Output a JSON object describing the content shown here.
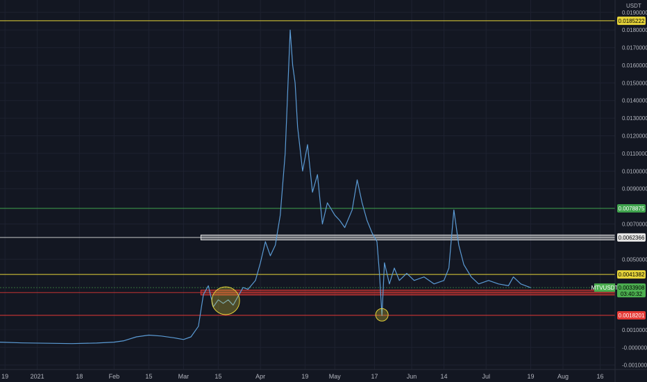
{
  "chart_data": {
    "type": "line",
    "symbol": "MTVUSDT",
    "currency_label": "USDT",
    "colors": {
      "background": "#131722",
      "price_line": "#5b9bd5",
      "grid": "#1e2230"
    },
    "yticks": [
      "0.0190000",
      "0.0180000",
      "0.0170000",
      "0.0160000",
      "0.0150000",
      "0.0140000",
      "0.0130000",
      "0.0120000",
      "0.0110000",
      "0.0100000",
      "0.0090000",
      "0.0070000",
      "0.0050000",
      "0.0010000",
      "-0.0000000",
      "-0.0010000"
    ],
    "ylim": [
      -0.00125,
      0.0197
    ],
    "xticks": [
      {
        "label": "19",
        "date": "2020-12-19"
      },
      {
        "label": "2021",
        "date": "2021-01-01"
      },
      {
        "label": "18",
        "date": "2021-01-18"
      },
      {
        "label": "Feb",
        "date": "2021-02-01"
      },
      {
        "label": "15",
        "date": "2021-02-15"
      },
      {
        "label": "Mar",
        "date": "2021-03-01"
      },
      {
        "label": "15",
        "date": "2021-03-15"
      },
      {
        "label": "Apr",
        "date": "2021-04-01"
      },
      {
        "label": "19",
        "date": "2021-04-19"
      },
      {
        "label": "May",
        "date": "2021-05-01"
      },
      {
        "label": "17",
        "date": "2021-05-17"
      },
      {
        "label": "Jun",
        "date": "2021-06-01"
      },
      {
        "label": "14",
        "date": "2021-06-14"
      },
      {
        "label": "Jul",
        "date": "2021-07-01"
      },
      {
        "label": "19",
        "date": "2021-07-19"
      },
      {
        "label": "Aug",
        "date": "2021-08-01"
      },
      {
        "label": "16",
        "date": "2021-08-16"
      }
    ],
    "xlim": [
      "2020-12-17",
      "2021-08-22"
    ],
    "series": [
      {
        "color": "#5b9bd5",
        "points": [
          [
            "2020-12-17",
            0.0003
          ],
          [
            "2020-12-26",
            0.00026
          ],
          [
            "2021-01-05",
            0.00024
          ],
          [
            "2021-01-15",
            0.00022
          ],
          [
            "2021-01-25",
            0.00025
          ],
          [
            "2021-02-01",
            0.0003
          ],
          [
            "2021-02-05",
            0.00038
          ],
          [
            "2021-02-10",
            0.0006
          ],
          [
            "2021-02-15",
            0.0007
          ],
          [
            "2021-02-20",
            0.00065
          ],
          [
            "2021-02-25",
            0.00055
          ],
          [
            "2021-03-01",
            0.00045
          ],
          [
            "2021-03-04",
            0.0006
          ],
          [
            "2021-03-07",
            0.0012
          ],
          [
            "2021-03-09",
            0.003
          ],
          [
            "2021-03-11",
            0.0035
          ],
          [
            "2021-03-13",
            0.0023
          ],
          [
            "2021-03-15",
            0.0027
          ],
          [
            "2021-03-17",
            0.0025
          ],
          [
            "2021-03-19",
            0.0027
          ],
          [
            "2021-03-21",
            0.0024
          ],
          [
            "2021-03-23",
            0.0029
          ],
          [
            "2021-03-25",
            0.0034
          ],
          [
            "2021-03-27",
            0.0033
          ],
          [
            "2021-03-30",
            0.0038
          ],
          [
            "2021-04-01",
            0.0048
          ],
          [
            "2021-04-03",
            0.006
          ],
          [
            "2021-04-05",
            0.0052
          ],
          [
            "2021-04-07",
            0.0058
          ],
          [
            "2021-04-09",
            0.0075
          ],
          [
            "2021-04-11",
            0.011
          ],
          [
            "2021-04-13",
            0.018
          ],
          [
            "2021-04-14",
            0.016
          ],
          [
            "2021-04-15",
            0.015
          ],
          [
            "2021-04-16",
            0.0125
          ],
          [
            "2021-04-18",
            0.01
          ],
          [
            "2021-04-20",
            0.0115
          ],
          [
            "2021-04-22",
            0.0088
          ],
          [
            "2021-04-24",
            0.0098
          ],
          [
            "2021-04-26",
            0.007
          ],
          [
            "2021-04-28",
            0.0082
          ],
          [
            "2021-05-01",
            0.0075
          ],
          [
            "2021-05-03",
            0.0072
          ],
          [
            "2021-05-05",
            0.0068
          ],
          [
            "2021-05-08",
            0.0078
          ],
          [
            "2021-05-10",
            0.0095
          ],
          [
            "2021-05-12",
            0.0082
          ],
          [
            "2021-05-14",
            0.0072
          ],
          [
            "2021-05-16",
            0.0065
          ],
          [
            "2021-05-18",
            0.006
          ],
          [
            "2021-05-19",
            0.0042
          ],
          [
            "2021-05-20",
            0.0018
          ],
          [
            "2021-05-21",
            0.0048
          ],
          [
            "2021-05-23",
            0.0036
          ],
          [
            "2021-05-25",
            0.0045
          ],
          [
            "2021-05-27",
            0.0038
          ],
          [
            "2021-05-30",
            0.0042
          ],
          [
            "2021-06-02",
            0.0038
          ],
          [
            "2021-06-06",
            0.004
          ],
          [
            "2021-06-10",
            0.0036
          ],
          [
            "2021-06-14",
            0.0038
          ],
          [
            "2021-06-16",
            0.0045
          ],
          [
            "2021-06-18",
            0.0078
          ],
          [
            "2021-06-20",
            0.0058
          ],
          [
            "2021-06-22",
            0.0047
          ],
          [
            "2021-06-25",
            0.004
          ],
          [
            "2021-06-28",
            0.0036
          ],
          [
            "2021-07-02",
            0.0038
          ],
          [
            "2021-07-06",
            0.0036
          ],
          [
            "2021-07-10",
            0.0035
          ],
          [
            "2021-07-12",
            0.004
          ],
          [
            "2021-07-15",
            0.0036
          ],
          [
            "2021-07-19",
            0.00339
          ]
        ]
      }
    ],
    "levels": [
      {
        "value": 0.0185222,
        "label": "0.0185222",
        "color": "#e6d43a",
        "text_color": "#000000",
        "style": "line"
      },
      {
        "value": 0.0078875,
        "label": "0.0078875",
        "color": "#3fa34d",
        "text_color": "#ffffff",
        "style": "line"
      },
      {
        "value": 0.0062366,
        "label": "0.0062366",
        "color": "#e6e6e6",
        "text_color": "#000000",
        "style": "band"
      },
      {
        "value": 0.0041382,
        "label": "0.0041382",
        "color": "#e6d43a",
        "text_color": "#000000",
        "style": "line"
      },
      {
        "value": 0.0031112,
        "label": "0.0031112",
        "color": "#e53935",
        "text_color": "#ffffff",
        "style": "band"
      },
      {
        "value": 0.0018201,
        "label": "0.0018201",
        "color": "#e53935",
        "text_color": "#ffffff",
        "style": "line"
      }
    ],
    "current_price": {
      "value": 0.0033908,
      "label": "0.0033908",
      "countdown": "03:40:32",
      "color": "#4caf50"
    },
    "annotations": [
      {
        "type": "circle",
        "date": "2021-03-18",
        "value": 0.00265,
        "color": "#e6d43a"
      },
      {
        "type": "circle",
        "date": "2021-05-20",
        "value": 0.00185,
        "color": "#e6d43a"
      }
    ]
  }
}
